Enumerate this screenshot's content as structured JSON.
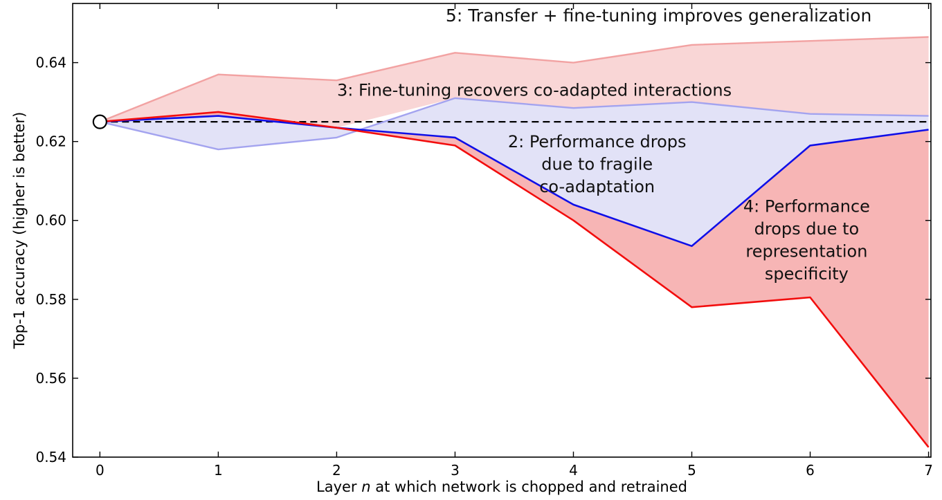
{
  "figure": {
    "xlabel_prefix": "Layer ",
    "xlabel_var": "n",
    "xlabel_suffix": " at which network is chopped and retrained",
    "ylabel": "Top-1 accuracy (higher is better)",
    "background": "#ffffff"
  },
  "chart_data": {
    "type": "line",
    "title": "",
    "xlabel": "Layer n at which network is chopped and retrained",
    "ylabel": "Top-1 accuracy (higher is better)",
    "x": [
      0,
      1,
      2,
      3,
      4,
      5,
      6,
      7
    ],
    "xtick_values": [
      0,
      1,
      2,
      3,
      4,
      5,
      6,
      7
    ],
    "xticks": [
      "0",
      "1",
      "2",
      "3",
      "4",
      "5",
      "6",
      "7"
    ],
    "ytick_values": [
      0.54,
      0.56,
      0.58,
      0.6,
      0.62,
      0.64
    ],
    "yticks": [
      "0.54",
      "0.56",
      "0.58",
      "0.60",
      "0.62",
      "0.64"
    ],
    "xlim": [
      -0.23,
      7.02
    ],
    "ylim": [
      0.54,
      0.655
    ],
    "grid": false,
    "legend": "none",
    "baseline": {
      "value": 0.625,
      "from_x": 0,
      "style": "dashed",
      "color": "#000000"
    },
    "start_marker": {
      "x": 0,
      "y": 0.625,
      "shape": "open-circle",
      "fill": "#ffffff",
      "edge": "#000000"
    },
    "series": [
      {
        "name": "5-transfer-plus-finetuning",
        "color": "#f2a2a2",
        "width": 2.4,
        "values": [
          0.625,
          0.637,
          0.6355,
          0.6425,
          0.64,
          0.6445,
          0.6455,
          0.6465
        ]
      },
      {
        "name": "3-finetuning-recovers-coadaptation",
        "color": "#a3a3ef",
        "width": 2.4,
        "values": [
          0.625,
          0.618,
          0.621,
          0.631,
          0.6285,
          0.63,
          0.627,
          0.6265
        ]
      },
      {
        "name": "2-fragile-coadaptation",
        "color": "#0f0fe8",
        "width": 2.6,
        "values": [
          0.625,
          0.6265,
          0.6235,
          0.621,
          0.604,
          0.5935,
          0.619,
          0.623
        ]
      },
      {
        "name": "4-representation-specificity",
        "color": "#f20d0d",
        "width": 2.6,
        "values": [
          0.625,
          0.6275,
          0.6235,
          0.619,
          0.6,
          0.578,
          0.5805,
          0.5425
        ]
      }
    ],
    "fills": [
      {
        "name": "region-5-pink",
        "upper": 0,
        "lower": "upper-envelope-of-others",
        "color": "#f9d6d6"
      },
      {
        "name": "region-2-blue",
        "upper": 1,
        "lower": 2,
        "color": "#e2e2f7"
      },
      {
        "name": "region-4-red",
        "upper": 2,
        "lower": 3,
        "color": "#f7b5b5"
      }
    ],
    "annotations": [
      {
        "name": "5-transfer-finetuning-improves-generalization",
        "x": 4.72,
        "y": 0.652,
        "size": 25,
        "lines": [
          "5: Transfer + fine-tuning improves generalization"
        ]
      },
      {
        "name": "3-finetuning-recovers-coadapted-interactions",
        "x": 3.67,
        "y": 0.6331,
        "size": 24,
        "lines": [
          "3: Fine-tuning recovers co-adapted interactions"
        ]
      },
      {
        "name": "2-performance-drops-fragile-coadaptation",
        "x": 4.2,
        "y": 0.62,
        "size": 24,
        "lines": [
          "2: Performance drops",
          "due to fragile",
          "co-adaptation"
        ]
      },
      {
        "name": "4-performance-drops-representation-specificity",
        "x": 5.97,
        "y": 0.6036,
        "size": 24,
        "lines": [
          "4: Performance",
          "drops due to",
          "representation",
          "specificity"
        ]
      }
    ]
  }
}
